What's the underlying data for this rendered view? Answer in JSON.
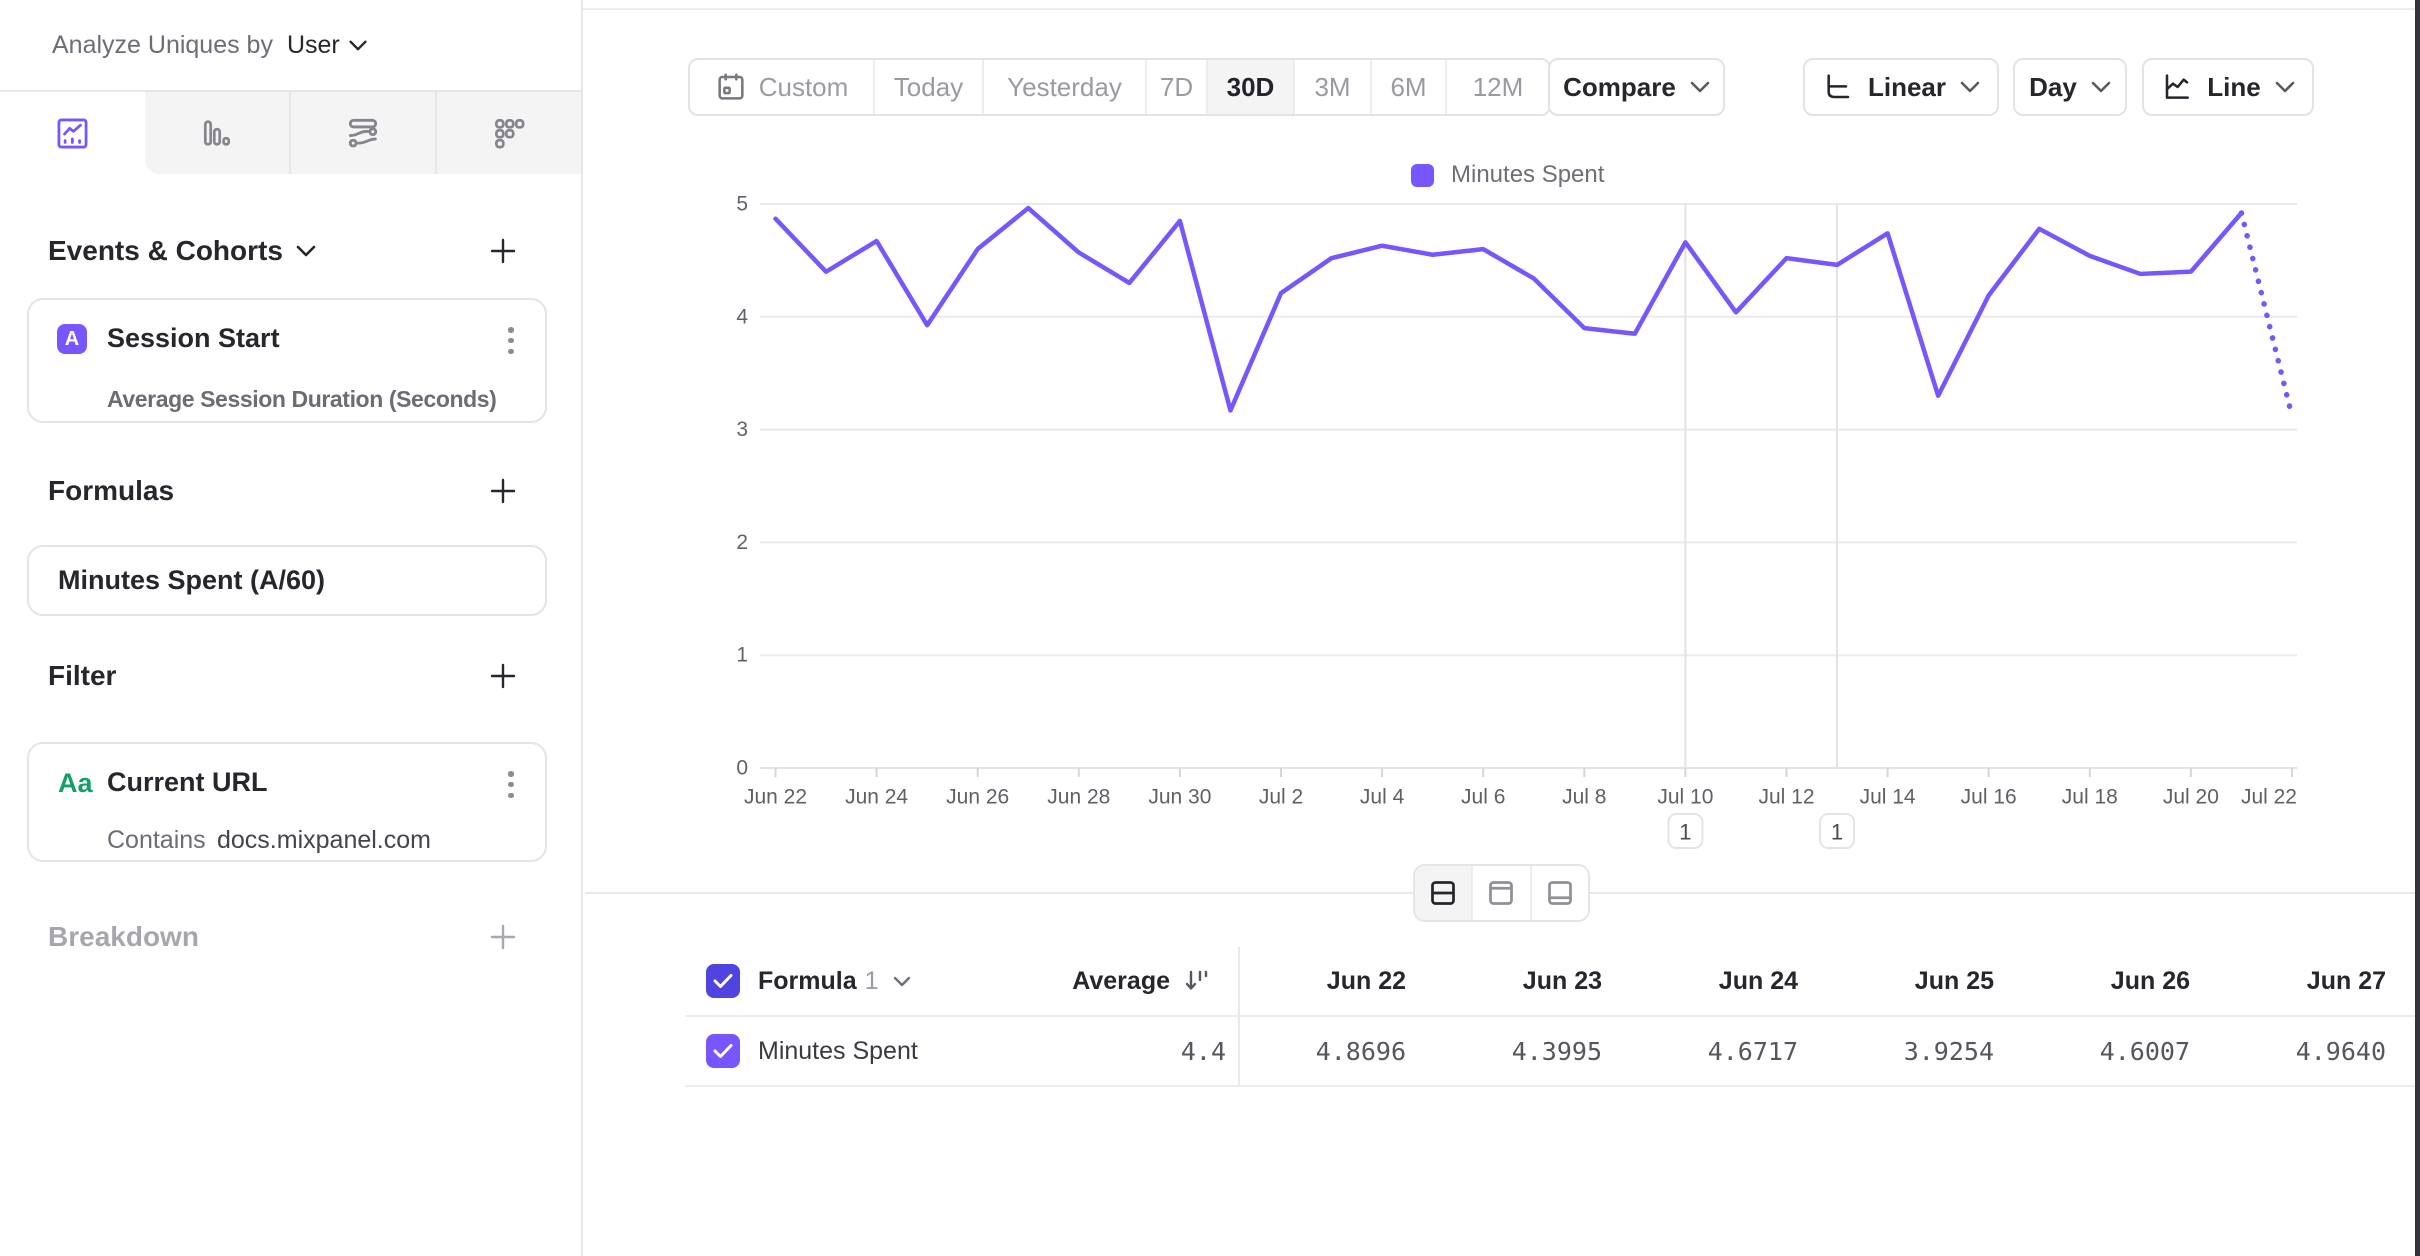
{
  "sidebar": {
    "analyze_label": "Analyze Uniques by",
    "analyze_value": "User",
    "sections": {
      "events_title": "Events & Cohorts",
      "formulas_title": "Formulas",
      "filter_title": "Filter",
      "breakdown_title": "Breakdown"
    },
    "event_card": {
      "badge": "A",
      "title": "Session Start",
      "subtitle": "Average Session Duration (Seconds)"
    },
    "formula_card": {
      "title": "Minutes Spent (A/60)"
    },
    "filter_card": {
      "badge": "Aa",
      "title": "Current URL",
      "operator": "Contains",
      "value": "docs.mixpanel.com"
    }
  },
  "toolbar": {
    "ranges": [
      "Custom",
      "Today",
      "Yesterday",
      "7D",
      "30D",
      "3M",
      "6M",
      "12M"
    ],
    "selected_range": "30D",
    "compare_label": "Compare",
    "scale_label": "Linear",
    "interval_label": "Day",
    "chart_type_label": "Line"
  },
  "chart_data": {
    "type": "line",
    "title": "",
    "xlabel": "",
    "ylabel": "",
    "ylim": [
      0,
      5
    ],
    "yticks": [
      0,
      1,
      2,
      3,
      4,
      5
    ],
    "grid": true,
    "legend": [
      "Minutes Spent"
    ],
    "legend_position": "top-center",
    "line_color": "#7856FF",
    "x": [
      "Jun 22",
      "Jun 23",
      "Jun 24",
      "Jun 25",
      "Jun 26",
      "Jun 27",
      "Jun 28",
      "Jun 29",
      "Jun 30",
      "Jul 1",
      "Jul 2",
      "Jul 3",
      "Jul 4",
      "Jul 5",
      "Jul 6",
      "Jul 7",
      "Jul 8",
      "Jul 9",
      "Jul 10",
      "Jul 11",
      "Jul 12",
      "Jul 13",
      "Jul 14",
      "Jul 15",
      "Jul 16",
      "Jul 17",
      "Jul 18",
      "Jul 19",
      "Jul 20",
      "Jul 21",
      "Jul 22"
    ],
    "x_label_every": 2,
    "series": [
      {
        "name": "Minutes Spent",
        "values": [
          4.8696,
          4.3995,
          4.6717,
          3.9254,
          4.6007,
          4.964,
          4.57,
          4.3,
          4.85,
          3.17,
          4.21,
          4.52,
          4.63,
          4.55,
          4.6,
          4.34,
          3.9,
          3.85,
          4.66,
          4.04,
          4.52,
          4.46,
          4.74,
          3.3,
          4.19,
          4.78,
          4.54,
          4.38,
          4.4,
          4.92,
          3.12
        ],
        "incomplete_tail_points": 1
      }
    ],
    "annotations": [
      {
        "x_index": 18,
        "label": "1"
      },
      {
        "x_index": 21,
        "label": "1"
      }
    ]
  },
  "table": {
    "formula_label": "Formula",
    "formula_number": "1",
    "average_label": "Average",
    "row_label": "Minutes Spent",
    "average_value": "4.4",
    "columns": [
      "Jun 22",
      "Jun 23",
      "Jun 24",
      "Jun 25",
      "Jun 26",
      "Jun 27"
    ],
    "values": [
      "4.8696",
      "4.3995",
      "4.6717",
      "3.9254",
      "4.6007",
      "4.9640"
    ]
  },
  "colors": {
    "accent_purple": "#7856FF",
    "checkbox_indigo": "#4f44e0",
    "filter_green": "#12A064",
    "text_dark": "#26262c",
    "text_gray": "#6d6d76",
    "border": "#e3e3e6",
    "gridline": "#ebebee",
    "tab_gray_bg": "#f4f4f5",
    "window_edge": "#33323b"
  }
}
